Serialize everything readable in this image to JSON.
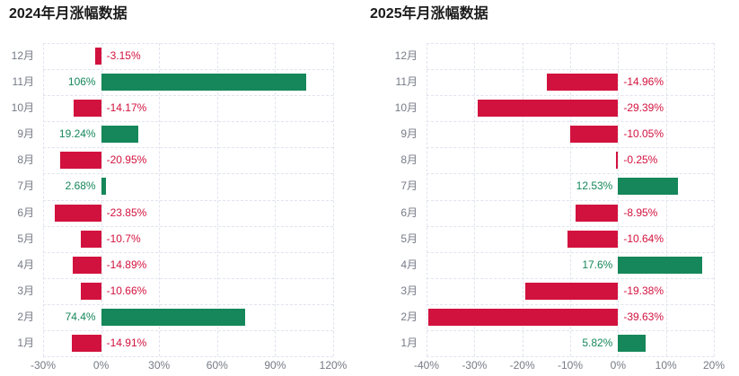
{
  "colors": {
    "positive": "#15875a",
    "negative": "#d2123e",
    "grid_line": "#e1e4ef",
    "axis_text": "#757a85",
    "title_text": "#1a1a1a"
  },
  "chart_data": [
    {
      "type": "bar",
      "orientation": "horizontal",
      "title": "2024年月涨幅数据",
      "value_unit": "%",
      "categories": [
        "12月",
        "11月",
        "10月",
        "9月",
        "8月",
        "7月",
        "6月",
        "5月",
        "4月",
        "3月",
        "2月",
        "1月"
      ],
      "values": [
        -3.15,
        106,
        -14.17,
        19.24,
        -20.95,
        2.68,
        -23.85,
        -10.7,
        -14.89,
        -10.66,
        74.4,
        -14.91
      ],
      "labels": [
        "-3.15%",
        "106%",
        "-14.17%",
        "19.24%",
        "-20.95%",
        "2.68%",
        "-23.85%",
        "-10.7%",
        "-14.89%",
        "-10.66%",
        "74.4%",
        "-14.91%"
      ],
      "xlim": [
        -30,
        120
      ],
      "tick_values": [
        -30,
        0,
        30,
        60,
        90,
        120
      ],
      "tick_labels": [
        "-30%",
        "0%",
        "30%",
        "60%",
        "90%",
        "120%"
      ],
      "grid": true,
      "legend": null
    },
    {
      "type": "bar",
      "orientation": "horizontal",
      "title": "2025年月涨幅数据",
      "value_unit": "%",
      "categories": [
        "12月",
        "11月",
        "10月",
        "9月",
        "8月",
        "7月",
        "6月",
        "5月",
        "4月",
        "3月",
        "2月",
        "1月"
      ],
      "values": [
        null,
        -14.96,
        -29.39,
        -10.05,
        -0.25,
        12.53,
        -8.95,
        -10.64,
        17.6,
        -19.38,
        -39.63,
        5.82
      ],
      "labels": [
        "",
        "-14.96%",
        "-29.39%",
        "-10.05%",
        "-0.25%",
        "12.53%",
        "-8.95%",
        "-10.64%",
        "17.6%",
        "-19.38%",
        "-39.63%",
        "5.82%"
      ],
      "xlim": [
        -40,
        20
      ],
      "tick_values": [
        -40,
        -30,
        -20,
        -10,
        0,
        10,
        20
      ],
      "tick_labels": [
        "-40%",
        "-30%",
        "-20%",
        "-10%",
        "0%",
        "10%",
        "20%"
      ],
      "grid": true,
      "legend": null
    }
  ]
}
